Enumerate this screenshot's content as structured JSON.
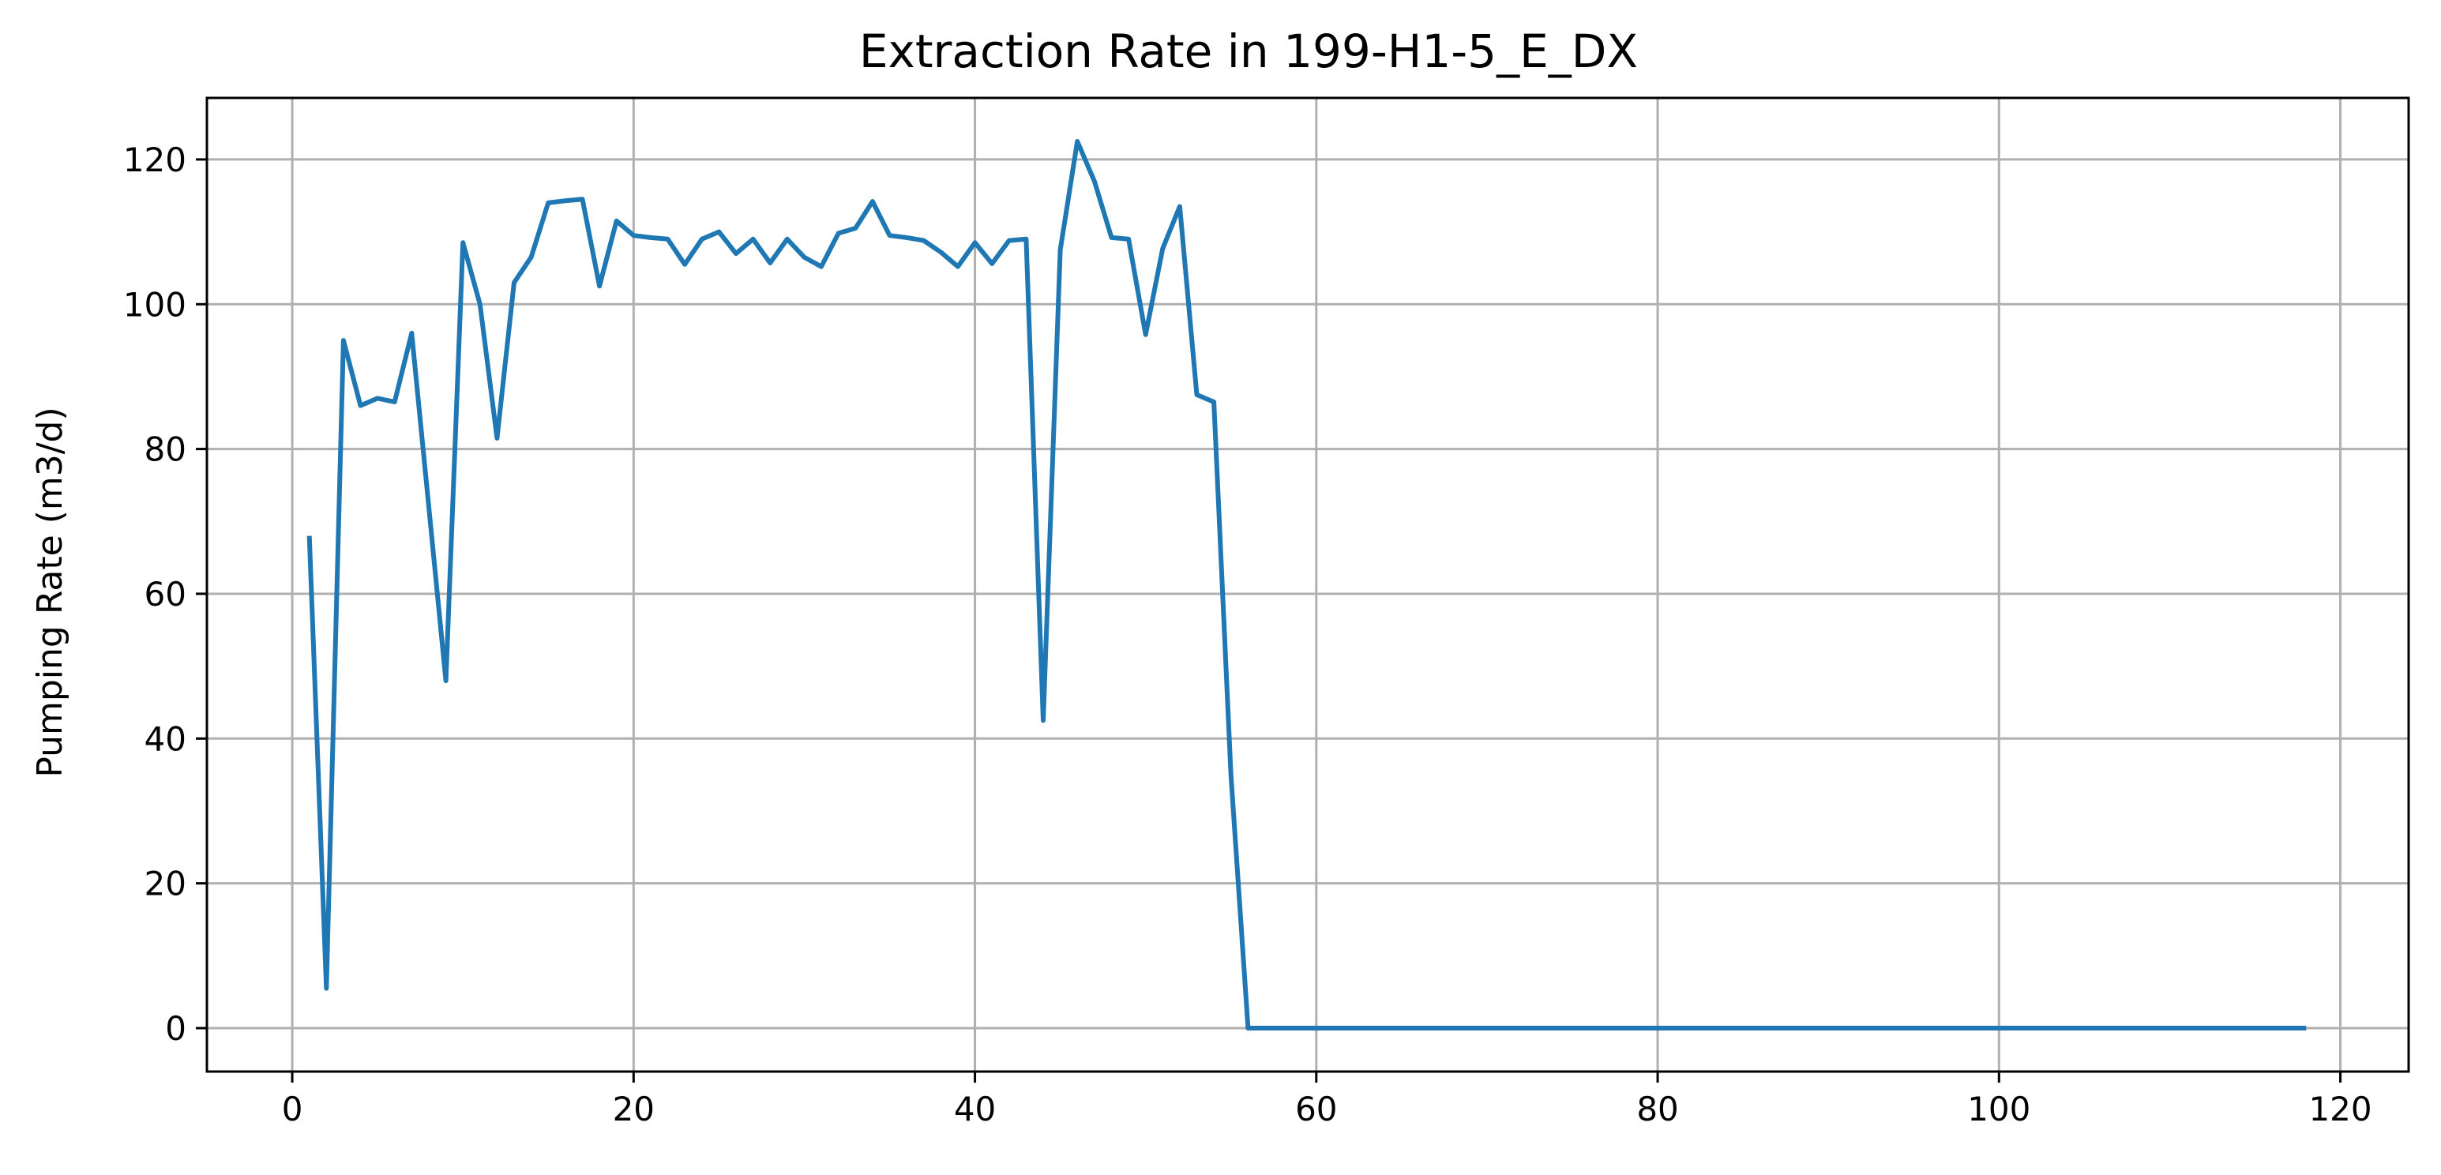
{
  "chart_data": {
    "type": "line",
    "title": "Extraction Rate in 199-H1-5_E_DX",
    "xlabel": "",
    "ylabel": "Pumping Rate (m3/d)",
    "xlim": [
      -5,
      124
    ],
    "ylim": [
      -6,
      128.5
    ],
    "xticks": [
      0,
      20,
      40,
      60,
      80,
      100,
      120
    ],
    "yticks": [
      0,
      20,
      40,
      60,
      80,
      100,
      120
    ],
    "xtick_labels": [
      "0",
      "20",
      "40",
      "60",
      "80",
      "100",
      "120"
    ],
    "ytick_labels": [
      "0",
      "20",
      "40",
      "60",
      "80",
      "100",
      "120"
    ],
    "grid": true,
    "colors": {
      "line": "#1f77b4",
      "grid": "#b0b0b0",
      "axis": "#000000"
    },
    "series": [
      {
        "x": [
          1,
          2,
          3,
          4,
          5,
          6,
          7,
          8,
          9,
          10,
          11,
          12,
          13,
          14,
          15,
          16,
          17,
          18,
          19,
          20,
          21,
          22,
          23,
          24,
          25,
          26,
          27,
          28,
          29,
          30,
          31,
          32,
          33,
          34,
          35,
          36,
          37,
          38,
          39,
          40,
          41,
          42,
          43,
          44,
          45,
          46,
          47,
          48,
          49,
          50,
          51,
          52,
          53,
          54,
          55,
          56,
          57,
          58,
          59,
          60,
          61,
          62,
          63,
          64,
          65,
          66,
          67,
          68,
          69,
          70,
          71,
          72,
          73,
          74,
          75,
          76,
          77,
          78,
          79,
          80,
          81,
          82,
          83,
          84,
          85,
          86,
          87,
          88,
          89,
          90,
          91,
          92,
          93,
          94,
          95,
          96,
          97,
          98,
          99,
          100,
          101,
          102,
          103,
          104,
          105,
          106,
          107,
          108,
          109,
          110,
          111,
          112,
          113,
          114,
          115,
          116,
          117,
          118
        ],
        "y": [
          68,
          5.5,
          95,
          86,
          87,
          86.5,
          96,
          72,
          48,
          108.5,
          100,
          81.5,
          103,
          106.5,
          114,
          114.3,
          114.5,
          102.5,
          111.5,
          109.5,
          109.2,
          109,
          105.5,
          109,
          110,
          107,
          109,
          105.7,
          109,
          106.5,
          105.2,
          109.8,
          110.5,
          114.2,
          109.5,
          109.2,
          108.8,
          107.2,
          105.2,
          108.5,
          105.6,
          108.8,
          109,
          42.5,
          107.5,
          122.5,
          117,
          109.2,
          109,
          95.8,
          107.7,
          113.5,
          87.5,
          86.5,
          35,
          0,
          0,
          0,
          0,
          0,
          0,
          0,
          0,
          0,
          0,
          0,
          0,
          0,
          0,
          0,
          0,
          0,
          0,
          0,
          0,
          0,
          0,
          0,
          0,
          0,
          0,
          0,
          0,
          0,
          0,
          0,
          0,
          0,
          0,
          0,
          0,
          0,
          0,
          0,
          0,
          0,
          0,
          0,
          0,
          0,
          0,
          0,
          0,
          0,
          0,
          0,
          0,
          0,
          0,
          0,
          0,
          0,
          0,
          0,
          0,
          0,
          0,
          0
        ]
      }
    ]
  }
}
